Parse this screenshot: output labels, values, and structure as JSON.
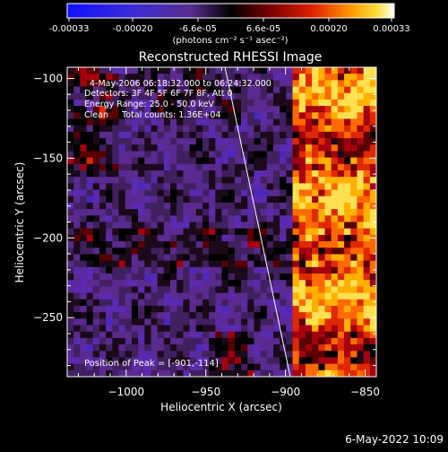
{
  "colorbar": {
    "ticks": [
      "-0.00033",
      "-0.00020",
      "-6.6e-05",
      "6.6e-05",
      "0.00020",
      "0.00033"
    ],
    "units_label": "(photons cm⁻² s⁻¹ asec⁻²)"
  },
  "image_title": "Reconstructed RHESSI Image",
  "annotations": {
    "time_line": "4-May-2006 06:18:32.000 to 06:24:32.000",
    "detectors_line": "Detectors: 3F 4F 5F 6F 7F 8F, Att 0",
    "energy_line": "Energy Range: 25.0 - 50.0 keV",
    "clean_line": "Clean     Total counts: 1.36E+04",
    "peak_line": "Position of Peak = [-901,-114]"
  },
  "footer_timestamp": "6-May-2022 10:09",
  "chart_data": {
    "type": "heatmap",
    "title": "Reconstructed RHESSI Image",
    "xlabel": "Heliocentric X (arcsec)",
    "ylabel": "Heliocentric Y (arcsec)",
    "xlim": [
      -1037,
      -843
    ],
    "ylim": [
      -287,
      -93
    ],
    "x_ticks": [
      -1000,
      -950,
      -900,
      -850
    ],
    "x_tick_labels": [
      "−1000",
      "−950",
      "−900",
      "−850"
    ],
    "y_ticks": [
      -100,
      -150,
      -200,
      -250
    ],
    "y_tick_labels": [
      "−100",
      "−150",
      "−200",
      "−250"
    ],
    "colorbar_range": [
      -0.00033,
      0.00033
    ],
    "colormap": "blue-purple-black-red-orange-yellow-white",
    "limb_line": [
      [
        -938,
        -93
      ],
      [
        -897,
        -287
      ]
    ],
    "peak_position": [
      -901,
      -114
    ]
  }
}
